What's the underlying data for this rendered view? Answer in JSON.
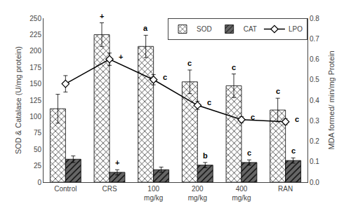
{
  "chart_data": {
    "type": "bar",
    "categories": [
      "Control",
      "CRS",
      "100\nmg/kg",
      "200\nmg/kg",
      "400\nmg/kg",
      "RAN"
    ],
    "series": [
      {
        "name": "SOD",
        "type": "bar",
        "color": "white",
        "values": [
          112,
          225,
          207,
          153,
          147,
          110
        ],
        "errors": [
          22,
          18,
          17,
          18,
          18,
          18
        ],
        "annotations": [
          null,
          "+",
          "a",
          "c",
          "c",
          "c"
        ]
      },
      {
        "name": "CAT",
        "type": "bar",
        "color": "#666666",
        "values": [
          35,
          15,
          19,
          26,
          30,
          33
        ],
        "errors": [
          5,
          4,
          4,
          4,
          4,
          4
        ],
        "annotations": [
          null,
          "+",
          null,
          "b",
          "c",
          "c"
        ]
      },
      {
        "name": "LPO",
        "type": "line",
        "axis": "y2",
        "color": "black",
        "marker": "diamond",
        "values": [
          0.48,
          0.6,
          0.5,
          0.375,
          0.305,
          0.295
        ],
        "errors": [
          0.04,
          0.03,
          0.025,
          0.02,
          0.015,
          0.015
        ],
        "annotations": [
          null,
          "+",
          "c",
          "c",
          "c",
          "c"
        ]
      }
    ],
    "ylabel": "SOD & Catalase (U/mg protein)",
    "y2label": "MDA formed/ min/mg Protein",
    "ylim": [
      0,
      250
    ],
    "yticks": [
      0,
      25,
      50,
      75,
      100,
      125,
      150,
      175,
      200,
      225,
      250
    ],
    "y2lim": [
      0,
      0.8
    ],
    "y2ticks": [
      {
        "value": 0,
        "label": "0.0"
      },
      0.1,
      0.2,
      0.3,
      0.4,
      0.5,
      0.6,
      0.7,
      0.8
    ],
    "grid": false,
    "legend": "upper right"
  }
}
